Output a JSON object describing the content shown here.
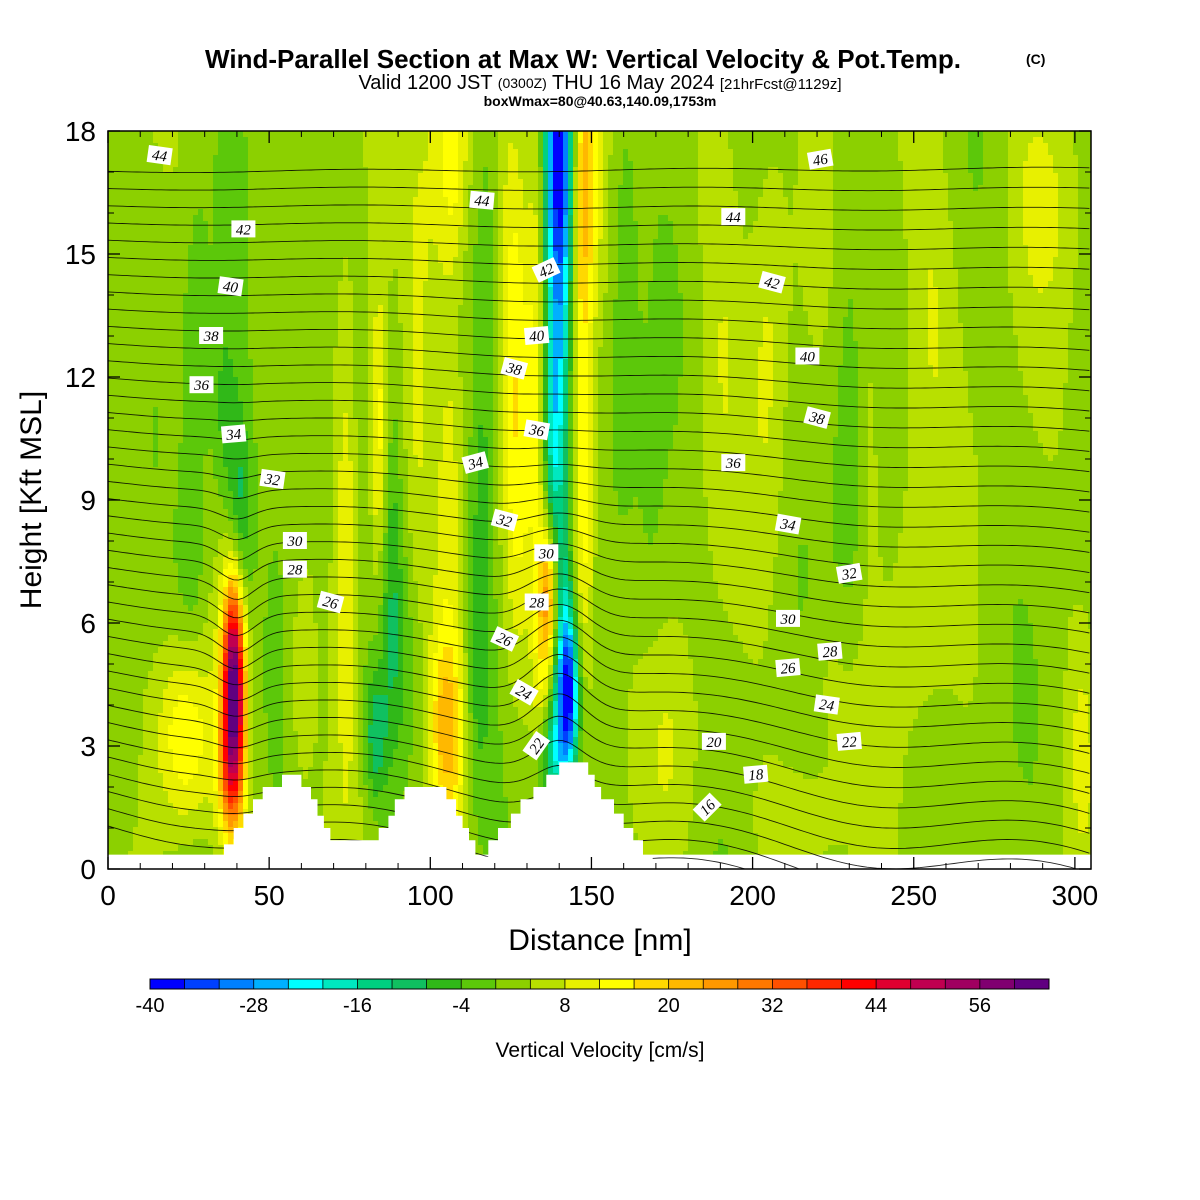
{
  "chart_data": {
    "type": "heatmap",
    "title": "Wind-Parallel Section at Max W: Vertical Velocity & Pot.Temp.",
    "title_mark": "(C)",
    "subtitle": {
      "prefix": "Valid 1200 JST",
      "utc": "(0300Z)",
      "date": "THU 16 May 2024",
      "forecast": "[21hrFcst@1129z]"
    },
    "box_info": "boxWmax=80@40.63,140.09,1753m",
    "xlabel": "Distance [nm]",
    "ylabel": "Height [Kft MSL]",
    "xlim": [
      0,
      305
    ],
    "ylim": [
      0,
      18
    ],
    "xticks": [
      0,
      50,
      100,
      150,
      200,
      250,
      300
    ],
    "yticks": [
      0,
      3,
      6,
      9,
      12,
      15,
      18
    ],
    "colorbar": {
      "label": "Vertical Velocity [cm/s]",
      "min": -40,
      "max": 62,
      "step": 4,
      "ticks": [
        -40,
        -28,
        -16,
        -4,
        8,
        20,
        32,
        44,
        56
      ],
      "colors": [
        "#0000ff",
        "#0040ff",
        "#0080ff",
        "#00b0ff",
        "#00ffff",
        "#00e8c0",
        "#00d080",
        "#10c060",
        "#30b818",
        "#5cc80a",
        "#8cd000",
        "#b8e000",
        "#e8f000",
        "#ffff00",
        "#ffd800",
        "#ffb800",
        "#ff9800",
        "#ff7800",
        "#ff5000",
        "#ff2800",
        "#ff0000",
        "#e00030",
        "#c00050",
        "#a00060",
        "#800070",
        "#600080"
      ]
    },
    "terrain": [
      [
        0,
        0
      ],
      [
        33,
        0
      ],
      [
        33,
        0.3
      ],
      [
        36,
        0.3
      ],
      [
        36,
        0.6
      ],
      [
        39,
        0.6
      ],
      [
        39,
        1.0
      ],
      [
        42,
        1.0
      ],
      [
        42,
        1.35
      ],
      [
        45,
        1.35
      ],
      [
        45,
        1.7
      ],
      [
        48,
        1.7
      ],
      [
        48,
        2.0
      ],
      [
        54,
        2.0
      ],
      [
        54,
        2.3
      ],
      [
        60,
        2.3
      ],
      [
        60,
        2.0
      ],
      [
        63,
        2.0
      ],
      [
        63,
        1.7
      ],
      [
        65,
        1.7
      ],
      [
        65,
        1.3
      ],
      [
        67,
        1.3
      ],
      [
        67,
        1.0
      ],
      [
        69,
        1.0
      ],
      [
        69,
        0.7
      ],
      [
        84,
        0.7
      ],
      [
        84,
        1.0
      ],
      [
        87,
        1.0
      ],
      [
        87,
        1.3
      ],
      [
        89,
        1.3
      ],
      [
        89,
        1.7
      ],
      [
        92,
        1.7
      ],
      [
        92,
        2.0
      ],
      [
        105,
        2.0
      ],
      [
        105,
        1.7
      ],
      [
        108,
        1.7
      ],
      [
        108,
        1.3
      ],
      [
        110,
        1.3
      ],
      [
        110,
        1.0
      ],
      [
        112,
        1.0
      ],
      [
        112,
        0.7
      ],
      [
        114,
        0.7
      ],
      [
        114,
        0.3
      ],
      [
        118,
        0.3
      ],
      [
        118,
        0.7
      ],
      [
        121,
        0.7
      ],
      [
        121,
        1.0
      ],
      [
        125,
        1.0
      ],
      [
        125,
        1.35
      ],
      [
        128,
        1.35
      ],
      [
        128,
        1.7
      ],
      [
        132,
        1.7
      ],
      [
        132,
        2.0
      ],
      [
        136,
        2.0
      ],
      [
        136,
        2.3
      ],
      [
        140,
        2.3
      ],
      [
        140,
        2.6
      ],
      [
        149,
        2.6
      ],
      [
        149,
        2.3
      ],
      [
        151,
        2.3
      ],
      [
        151,
        2.0
      ],
      [
        153,
        2.0
      ],
      [
        153,
        1.7
      ],
      [
        157,
        1.7
      ],
      [
        157,
        1.35
      ],
      [
        160,
        1.35
      ],
      [
        160,
        1.0
      ],
      [
        163,
        1.0
      ],
      [
        163,
        0.7
      ],
      [
        166,
        0.7
      ],
      [
        166,
        0.3
      ],
      [
        169,
        0.3
      ],
      [
        169,
        0
      ],
      [
        305,
        0
      ]
    ],
    "features": [
      {
        "x": 39,
        "z": 4.5,
        "w": 60,
        "sx": 2.4,
        "sz": 1.8
      },
      {
        "x": 38,
        "z": 2.2,
        "w": 18,
        "sx": 3,
        "sz": 1.2
      },
      {
        "x": 41,
        "z": 8.5,
        "w": -12,
        "sx": 2.5,
        "sz": 2
      },
      {
        "x": 36,
        "z": 11,
        "w": -8,
        "sx": 3,
        "sz": 2
      },
      {
        "x": 24,
        "z": 3.2,
        "w": 14,
        "sx": 6,
        "sz": 1.6
      },
      {
        "x": 27,
        "z": 12,
        "w": -6,
        "sx": 3,
        "sz": 3
      },
      {
        "x": 26,
        "z": 7,
        "w": -5,
        "sx": 4,
        "sz": 2
      },
      {
        "x": 74,
        "z": 8,
        "w": 10,
        "sx": 2.5,
        "sz": 4
      },
      {
        "x": 84,
        "z": 10.5,
        "w": 14,
        "sx": 2,
        "sz": 2.5
      },
      {
        "x": 83,
        "z": 3.2,
        "w": -13,
        "sx": 2.5,
        "sz": 1.2
      },
      {
        "x": 88,
        "z": 7,
        "w": -8,
        "sx": 2.5,
        "sz": 3
      },
      {
        "x": 92,
        "z": 5,
        "w": -6,
        "sx": 4,
        "sz": 2
      },
      {
        "x": 96,
        "z": 13,
        "w": 6,
        "sx": 3,
        "sz": 4
      },
      {
        "x": 103,
        "z": 3.5,
        "w": 8,
        "sx": 2.5,
        "sz": 1.5
      },
      {
        "x": 107,
        "z": 3.2,
        "w": 15,
        "sx": 3.5,
        "sz": 2
      },
      {
        "x": 106,
        "z": 10,
        "w": 7,
        "sx": 3,
        "sz": 3
      },
      {
        "x": 103,
        "z": 17,
        "w": 8,
        "sx": 4,
        "sz": 2.5
      },
      {
        "x": 108,
        "z": 17.5,
        "w": 10,
        "sx": 3,
        "sz": 2
      },
      {
        "x": 116,
        "z": 7.5,
        "w": -8,
        "sx": 2.5,
        "sz": 3
      },
      {
        "x": 118,
        "z": 14,
        "w": -5,
        "sx": 3,
        "sz": 3
      },
      {
        "x": 113,
        "z": 4,
        "w": -5,
        "sx": 3,
        "sz": 2
      },
      {
        "x": 127,
        "z": 10,
        "w": 10,
        "sx": 3,
        "sz": 4
      },
      {
        "x": 125,
        "z": 16,
        "w": 5,
        "sx": 3,
        "sz": 3
      },
      {
        "x": 133,
        "z": 13,
        "w": 8,
        "sx": 2,
        "sz": 6
      },
      {
        "x": 137,
        "z": 6.8,
        "w": 26,
        "sx": 2.2,
        "sz": 1.3
      },
      {
        "x": 135,
        "z": 4.5,
        "w": 8,
        "sx": 2,
        "sz": 1.5
      },
      {
        "x": 143,
        "z": 4.2,
        "w": -38,
        "sx": 2.4,
        "sz": 1.4
      },
      {
        "x": 141,
        "z": 6.5,
        "w": -12,
        "sx": 2,
        "sz": 1.5
      },
      {
        "x": 139,
        "z": 3.2,
        "w": -12,
        "sx": 3,
        "sz": 1.2
      },
      {
        "x": 137,
        "z": 2.6,
        "w": -10,
        "sx": 3,
        "sz": 0.8
      },
      {
        "x": 140,
        "z": 14,
        "w": -22,
        "sx": 3,
        "sz": 4
      },
      {
        "x": 140,
        "z": 18,
        "w": -28,
        "sx": 3,
        "sz": 2.5
      },
      {
        "x": 138,
        "z": 10,
        "w": -12,
        "sx": 2,
        "sz": 2.5
      },
      {
        "x": 146.5,
        "z": 12,
        "w": 13,
        "sx": 2.3,
        "sz": 6
      },
      {
        "x": 149,
        "z": 17,
        "w": 12,
        "sx": 2.5,
        "sz": 2.5
      },
      {
        "x": 149,
        "z": 8,
        "w": 6,
        "sx": 2,
        "sz": 2.5
      },
      {
        "x": 160,
        "z": 14,
        "w": -6,
        "sx": 3,
        "sz": 4
      },
      {
        "x": 168,
        "z": 8,
        "w": -4,
        "sx": 4,
        "sz": 3
      },
      {
        "x": 175,
        "z": 3,
        "w": 4,
        "sx": 8,
        "sz": 2
      },
      {
        "x": 190,
        "z": 14,
        "w": 4,
        "sx": 5,
        "sz": 4
      },
      {
        "x": 205,
        "z": 13,
        "w": 6,
        "sx": 4,
        "sz": 4
      },
      {
        "x": 215,
        "z": 1.3,
        "w": 4,
        "sx": 10,
        "sz": 1
      },
      {
        "x": 225,
        "z": 4.5,
        "w": 4,
        "sx": 6,
        "sz": 1.5
      },
      {
        "x": 230,
        "z": 10,
        "w": -6,
        "sx": 4,
        "sz": 4
      },
      {
        "x": 236,
        "z": 11,
        "w": 5,
        "sx": 3,
        "sz": 3
      },
      {
        "x": 250,
        "z": 7,
        "w": 4,
        "sx": 6,
        "sz": 3
      },
      {
        "x": 255,
        "z": 14,
        "w": 5,
        "sx": 6,
        "sz": 3
      },
      {
        "x": 290,
        "z": 16.5,
        "w": 5,
        "sx": 8,
        "sz": 2
      },
      {
        "x": 302,
        "z": 3,
        "w": 5,
        "sx": 3,
        "sz": 2
      },
      {
        "x": 5,
        "z": 3,
        "w": -4,
        "sx": 4,
        "sz": 2
      },
      {
        "x": 8,
        "z": 12,
        "w": 4,
        "sx": 3,
        "sz": 3
      },
      {
        "x": 55,
        "z": 14,
        "w": -3,
        "sx": 6,
        "sz": 5
      },
      {
        "x": 60,
        "z": 4.5,
        "w": 6,
        "sx": 3,
        "sz": 2
      }
    ],
    "theta_levels": [
      11,
      12,
      13,
      14,
      15,
      16,
      17,
      18,
      19,
      20,
      21,
      22,
      23,
      24,
      25,
      26,
      27,
      28,
      29,
      30,
      31,
      32,
      33,
      34,
      35,
      36,
      37,
      38,
      39,
      40,
      41,
      42,
      43,
      44,
      45,
      46,
      47,
      48,
      49
    ],
    "theta_labels": [
      {
        "x": 16,
        "z": 17.4,
        "v": "44",
        "rot": 8
      },
      {
        "x": 42,
        "z": 15.6,
        "v": "42",
        "rot": 0
      },
      {
        "x": 38,
        "z": 14.2,
        "v": "40",
        "rot": 8
      },
      {
        "x": 32,
        "z": 13.0,
        "v": "38",
        "rot": 0
      },
      {
        "x": 29,
        "z": 11.8,
        "v": "36",
        "rot": 0
      },
      {
        "x": 39,
        "z": 10.6,
        "v": "34",
        "rot": -5
      },
      {
        "x": 51,
        "z": 9.5,
        "v": "32",
        "rot": 8
      },
      {
        "x": 58,
        "z": 8.0,
        "v": "30",
        "rot": 0
      },
      {
        "x": 58,
        "z": 7.3,
        "v": "28",
        "rot": 0
      },
      {
        "x": 69,
        "z": 6.5,
        "v": "26",
        "rot": 15
      },
      {
        "x": 116,
        "z": 16.3,
        "v": "44",
        "rot": 5
      },
      {
        "x": 136,
        "z": 14.6,
        "v": "42",
        "rot": -25
      },
      {
        "x": 133,
        "z": 13.0,
        "v": "40",
        "rot": -5
      },
      {
        "x": 126,
        "z": 12.2,
        "v": "38",
        "rot": 15
      },
      {
        "x": 133,
        "z": 10.7,
        "v": "36",
        "rot": 10
      },
      {
        "x": 114,
        "z": 9.9,
        "v": "34",
        "rot": -15
      },
      {
        "x": 123,
        "z": 8.5,
        "v": "32",
        "rot": 15
      },
      {
        "x": 136,
        "z": 7.7,
        "v": "30",
        "rot": 0
      },
      {
        "x": 133,
        "z": 6.5,
        "v": "28",
        "rot": 0
      },
      {
        "x": 123,
        "z": 5.6,
        "v": "26",
        "rot": 25
      },
      {
        "x": 129,
        "z": 4.3,
        "v": "24",
        "rot": 30
      },
      {
        "x": 133,
        "z": 3.0,
        "v": "22",
        "rot": -55
      },
      {
        "x": 221,
        "z": 17.3,
        "v": "46",
        "rot": -10
      },
      {
        "x": 194,
        "z": 15.9,
        "v": "44",
        "rot": 0
      },
      {
        "x": 206,
        "z": 14.3,
        "v": "42",
        "rot": 15
      },
      {
        "x": 217,
        "z": 12.5,
        "v": "40",
        "rot": 0
      },
      {
        "x": 220,
        "z": 11.0,
        "v": "38",
        "rot": 15
      },
      {
        "x": 194,
        "z": 9.9,
        "v": "36",
        "rot": 0
      },
      {
        "x": 211,
        "z": 8.4,
        "v": "34",
        "rot": 10
      },
      {
        "x": 230,
        "z": 7.2,
        "v": "32",
        "rot": -10
      },
      {
        "x": 211,
        "z": 6.1,
        "v": "30",
        "rot": 0
      },
      {
        "x": 224,
        "z": 5.3,
        "v": "28",
        "rot": -5
      },
      {
        "x": 211,
        "z": 4.9,
        "v": "26",
        "rot": -5
      },
      {
        "x": 223,
        "z": 4.0,
        "v": "24",
        "rot": 8
      },
      {
        "x": 230,
        "z": 3.1,
        "v": "22",
        "rot": -5
      },
      {
        "x": 188,
        "z": 3.1,
        "v": "20",
        "rot": 0
      },
      {
        "x": 201,
        "z": 2.3,
        "v": "18",
        "rot": -5
      },
      {
        "x": 186,
        "z": 1.5,
        "v": "16",
        "rot": -45
      }
    ]
  }
}
